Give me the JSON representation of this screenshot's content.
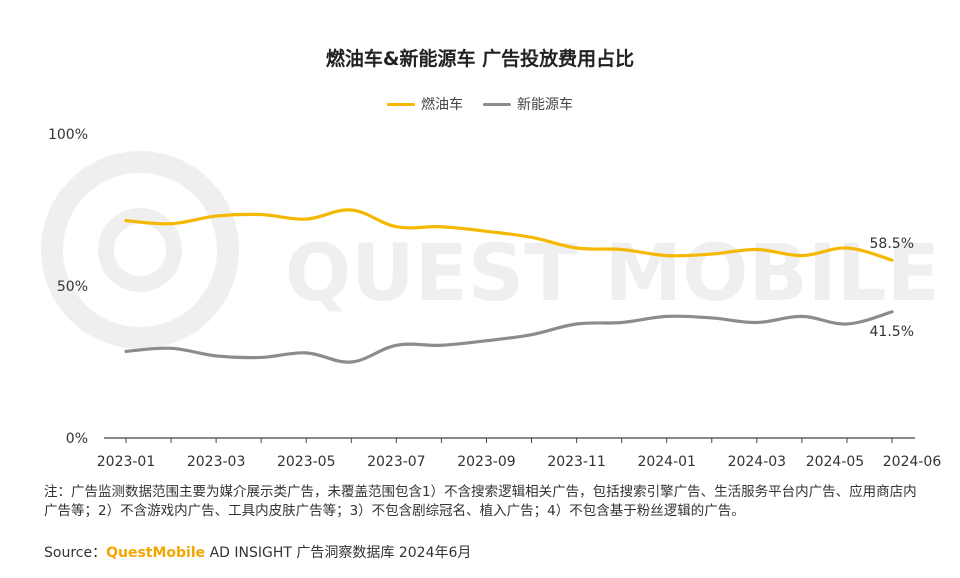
{
  "chart_data": {
    "type": "line",
    "title": "燃油车&新能源车 广告投放费用占比",
    "x": [
      "2023-01",
      "2023-02",
      "2023-03",
      "2023-04",
      "2023-05",
      "2023-06",
      "2023-07",
      "2023-08",
      "2023-09",
      "2023-10",
      "2023-11",
      "2023-12",
      "2024-01",
      "2024-02",
      "2024-03",
      "2024-04",
      "2024-05",
      "2024-06"
    ],
    "x_tick_labels": [
      "2023-01",
      "2023-03",
      "2023-05",
      "2023-07",
      "2023-09",
      "2023-11",
      "2024-01",
      "2024-03",
      "2024-05",
      "2024-06"
    ],
    "y_tick_labels": [
      "0%",
      "50%",
      "100%"
    ],
    "ylim": [
      0,
      100
    ],
    "grid": false,
    "legend_position": "top",
    "series": [
      {
        "name": "燃油车",
        "color": "#f5b800",
        "values": [
          71.5,
          70.5,
          73.0,
          73.5,
          72.0,
          75.0,
          69.5,
          69.5,
          68.0,
          66.0,
          62.5,
          62.0,
          60.0,
          60.5,
          62.0,
          60.0,
          62.5,
          58.5
        ]
      },
      {
        "name": "新能源车",
        "color": "#8c8c8c",
        "values": [
          28.5,
          29.5,
          27.0,
          26.5,
          28.0,
          25.0,
          30.5,
          30.5,
          32.0,
          34.0,
          37.5,
          38.0,
          40.0,
          39.5,
          38.0,
          40.0,
          37.5,
          41.5
        ]
      }
    ],
    "annotations": [
      "58.5%",
      "41.5%"
    ]
  },
  "watermark": "QUEST MOBILE",
  "notes": "注：广告监测数据范围主要为媒介展示类广告，未覆盖范围包含1）不含搜索逻辑相关广告，包括搜索引擎广告、生活服务平台内广告、应用商店内广告等；2）不含游戏内广告、工具内皮肤广告等；3）不包含剧综冠名、植入广告；4）不包含基于粉丝逻辑的广告。",
  "source": {
    "label": "Source：",
    "brand": "QuestMobile",
    "rest": " AD INSIGHT 广告洞察数据库 2024年6月",
    "brand_color": "#f3a600"
  }
}
